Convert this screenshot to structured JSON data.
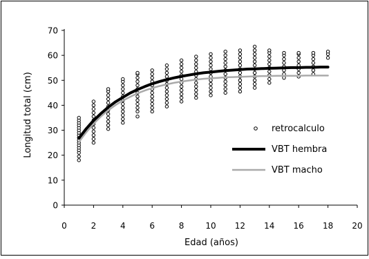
{
  "chart_data": {
    "type": "scatter",
    "xlabel": "Edad (años)",
    "ylabel": "Longitud total (cm)",
    "xlim": [
      0,
      20
    ],
    "ylim": [
      0,
      70
    ],
    "x_ticks": [
      0,
      2,
      4,
      6,
      8,
      10,
      12,
      14,
      16,
      18,
      20
    ],
    "y_ticks": [
      0,
      10,
      20,
      30,
      40,
      50,
      60,
      70
    ],
    "grid": false,
    "legend_position": "center-right",
    "series": [
      {
        "name": "retrocalculo",
        "kind": "scatter",
        "marker": "open-circle",
        "color": "#000000",
        "points_by_age": [
          {
            "x": 1,
            "y": [
              18,
              19.5,
              21,
              22,
              23,
              24,
              25,
              26,
              27,
              28,
              29,
              30,
              31,
              32,
              33,
              34,
              35
            ]
          },
          {
            "x": 2,
            "y": [
              25,
              26.5,
              28,
              29.5,
              31,
              32.5,
              34,
              35.5,
              37,
              38.5,
              40,
              41.5
            ]
          },
          {
            "x": 3,
            "y": [
              30.5,
              32,
              33.5,
              35,
              36.5,
              38,
              39.5,
              41,
              42.5,
              44,
              45.5,
              46.5
            ]
          },
          {
            "x": 4,
            "y": [
              33,
              34.5,
              36,
              37.5,
              39,
              40.5,
              42,
              43.5,
              45,
              46.5,
              48,
              49.5,
              50.5
            ]
          },
          {
            "x": 5,
            "y": [
              35.5,
              37.5,
              39,
              40.5,
              42,
              43.5,
              45,
              46.5,
              48,
              49.5,
              51,
              52.5,
              53
            ]
          },
          {
            "x": 6,
            "y": [
              37.5,
              39,
              40.5,
              42,
              43.5,
              45,
              46.5,
              48,
              49.5,
              51,
              52.5,
              54
            ]
          },
          {
            "x": 7,
            "y": [
              39.5,
              41,
              42.5,
              44,
              45.5,
              47,
              48.5,
              50,
              51.5,
              53,
              54.5,
              56
            ]
          },
          {
            "x": 8,
            "y": [
              41.5,
              43,
              44.5,
              46,
              47.5,
              49,
              50.5,
              52,
              53.5,
              55,
              56.5,
              58
            ]
          },
          {
            "x": 9,
            "y": [
              43,
              44.5,
              46,
              47.5,
              49,
              50.5,
              52,
              53.5,
              55,
              56.5,
              58,
              59.5
            ]
          },
          {
            "x": 10,
            "y": [
              44,
              45.5,
              47,
              48.5,
              50,
              51.5,
              53,
              54.5,
              56,
              57.5,
              59,
              60.5
            ]
          },
          {
            "x": 11,
            "y": [
              45,
              46.5,
              48,
              49.5,
              51,
              52.5,
              54,
              55.5,
              57,
              58.5,
              60,
              61.5
            ]
          },
          {
            "x": 12,
            "y": [
              45.5,
              47,
              48.5,
              50,
              51.5,
              53,
              54.5,
              56,
              57.5,
              59,
              60.5,
              62
            ]
          },
          {
            "x": 13,
            "y": [
              47,
              48.5,
              50,
              51.5,
              53,
              54.5,
              56,
              57.5,
              59,
              60.5,
              62,
              63.5
            ]
          },
          {
            "x": 14,
            "y": [
              49,
              50.5,
              52,
              53.5,
              55,
              56.5,
              58,
              59.5,
              61,
              62
            ]
          },
          {
            "x": 15,
            "y": [
              51,
              52.5,
              54,
              55.5,
              57,
              58.5,
              60,
              61
            ]
          },
          {
            "x": 16,
            "y": [
              51.5,
              53,
              54.5,
              56,
              57.5,
              59,
              60.5,
              61
            ]
          },
          {
            "x": 17,
            "y": [
              52.5,
              54,
              55.5,
              57,
              58.5,
              60,
              61
            ]
          },
          {
            "x": 18,
            "y": [
              59,
              60.5,
              61.5
            ]
          }
        ]
      },
      {
        "name": "VBT hembra",
        "kind": "line",
        "color": "#000000",
        "x": [
          1,
          1.5,
          2,
          2.5,
          3,
          3.5,
          4,
          4.5,
          5,
          5.5,
          6,
          6.5,
          7,
          7.5,
          8,
          8.5,
          9,
          9.5,
          10,
          10.5,
          11,
          11.5,
          12,
          12.5,
          13,
          13.5,
          14,
          14.5,
          15,
          15.5,
          16,
          16.5,
          17,
          17.5,
          18
        ],
        "y": [
          26.8,
          30.6,
          33.9,
          36.7,
          39.2,
          41.4,
          43.2,
          44.9,
          46.3,
          47.5,
          48.6,
          49.5,
          50.3,
          51.0,
          51.6,
          52.1,
          52.6,
          53.0,
          53.3,
          53.6,
          53.9,
          54.1,
          54.3,
          54.5,
          54.6,
          54.7,
          54.8,
          54.9,
          55.0,
          55.1,
          55.1,
          55.2,
          55.2,
          55.3,
          55.3
        ]
      },
      {
        "name": "VBT macho",
        "kind": "line",
        "color": "#aaaaaa",
        "x": [
          1,
          1.5,
          2,
          2.5,
          3,
          3.5,
          4,
          4.5,
          5,
          5.5,
          6,
          6.5,
          7,
          7.5,
          8,
          8.5,
          9,
          9.5,
          10,
          10.5,
          11,
          11.5,
          12,
          12.5,
          13,
          13.5,
          14,
          14.5,
          15,
          15.5,
          16,
          16.5,
          17,
          17.5,
          18
        ],
        "y": [
          25.3,
          29.2,
          32.6,
          35.5,
          38.0,
          40.1,
          41.9,
          43.4,
          44.8,
          45.9,
          46.9,
          47.7,
          48.4,
          49.0,
          49.5,
          49.9,
          50.3,
          50.6,
          50.8,
          51.0,
          51.2,
          51.3,
          51.4,
          51.5,
          51.6,
          51.7,
          51.7,
          51.8,
          51.8,
          51.8,
          51.8,
          51.9,
          51.9,
          51.9,
          51.9
        ]
      }
    ]
  }
}
